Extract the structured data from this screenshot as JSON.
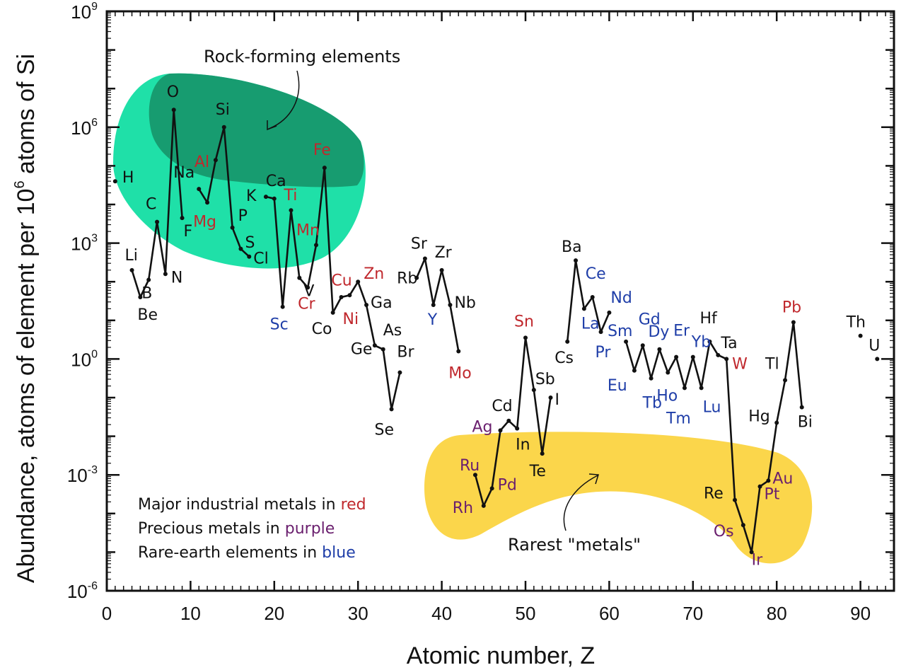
{
  "chart_data": {
    "type": "line",
    "xlabel": "Atomic number, Z",
    "ylabel_parts": [
      "Abundance, atoms of element per 10",
      "6",
      " atoms of Si"
    ],
    "xlim": [
      0,
      94
    ],
    "ylim_log10": [
      -6,
      9
    ],
    "x_ticks": [
      "0",
      "10",
      "20",
      "30",
      "40",
      "50",
      "60",
      "70",
      "80",
      "90"
    ],
    "y_ticks": [
      {
        "base": "10",
        "exp": "-6"
      },
      {
        "base": "10",
        "exp": "-3"
      },
      {
        "base": "10",
        "exp": "0"
      },
      {
        "base": "10",
        "exp": "3"
      },
      {
        "base": "10",
        "exp": "6"
      },
      {
        "base": "10",
        "exp": "9"
      }
    ],
    "y_scale": "log",
    "grid": false,
    "colors": {
      "line": "#111111",
      "black": "#111111",
      "red": "#c0282d",
      "purple": "#6a1f6e",
      "blue": "#1f3ea8",
      "rock_region": "#1fe0a8",
      "rock_region_dark": "#179c70",
      "rare_region": "#fbd64b"
    },
    "elements": [
      {
        "z": 1,
        "symbol": "H",
        "log10": 4.6,
        "c": "black"
      },
      {
        "z": 3,
        "symbol": "Li",
        "log10": 2.3,
        "c": "black"
      },
      {
        "z": 4,
        "symbol": "Be",
        "log10": 1.6,
        "c": "black"
      },
      {
        "z": 5,
        "symbol": "B",
        "log10": 2.05,
        "c": "black"
      },
      {
        "z": 6,
        "symbol": "C",
        "log10": 3.55,
        "c": "black"
      },
      {
        "z": 7,
        "symbol": "N",
        "log10": 2.2,
        "c": "black"
      },
      {
        "z": 8,
        "symbol": "O",
        "log10": 6.45,
        "c": "black"
      },
      {
        "z": 9,
        "symbol": "F",
        "log10": 3.65,
        "c": "black"
      },
      {
        "z": 11,
        "symbol": "Na",
        "log10": 4.4,
        "c": "black"
      },
      {
        "z": 12,
        "symbol": "Mg",
        "log10": 4.05,
        "c": "red"
      },
      {
        "z": 13,
        "symbol": "Al",
        "log10": 5.15,
        "c": "red"
      },
      {
        "z": 14,
        "symbol": "Si",
        "log10": 6.0,
        "c": "black"
      },
      {
        "z": 15,
        "symbol": "P",
        "log10": 3.4,
        "c": "black"
      },
      {
        "z": 16,
        "symbol": "S",
        "log10": 2.85,
        "c": "black"
      },
      {
        "z": 17,
        "symbol": "Cl",
        "log10": 2.65,
        "c": "black"
      },
      {
        "z": 19,
        "symbol": "K",
        "log10": 4.2,
        "c": "black"
      },
      {
        "z": 20,
        "symbol": "Ca",
        "log10": 4.15,
        "c": "black"
      },
      {
        "z": 21,
        "symbol": "Sc",
        "log10": 1.35,
        "c": "blue"
      },
      {
        "z": 22,
        "symbol": "Ti",
        "log10": 3.85,
        "c": "red"
      },
      {
        "z": 23,
        "symbol": "V",
        "log10": 2.1,
        "c": "black"
      },
      {
        "z": 24,
        "symbol": "Cr",
        "log10": 1.85,
        "c": "red"
      },
      {
        "z": 25,
        "symbol": "Mn",
        "log10": 2.95,
        "c": "red"
      },
      {
        "z": 26,
        "symbol": "Fe",
        "log10": 4.95,
        "c": "red"
      },
      {
        "z": 27,
        "symbol": "Co",
        "log10": 1.2,
        "c": "black"
      },
      {
        "z": 28,
        "symbol": "Ni",
        "log10": 1.6,
        "c": "red"
      },
      {
        "z": 29,
        "symbol": "Cu",
        "log10": 1.65,
        "c": "red"
      },
      {
        "z": 30,
        "symbol": "Zn",
        "log10": 2.0,
        "c": "red"
      },
      {
        "z": 31,
        "symbol": "Ga",
        "log10": 1.4,
        "c": "black"
      },
      {
        "z": 32,
        "symbol": "Ge",
        "log10": 0.35,
        "c": "black"
      },
      {
        "z": 33,
        "symbol": "As",
        "log10": 0.25,
        "c": "black"
      },
      {
        "z": 34,
        "symbol": "Se",
        "log10": -1.3,
        "c": "black"
      },
      {
        "z": 35,
        "symbol": "Br",
        "log10": -0.35,
        "c": "black"
      },
      {
        "z": 37,
        "symbol": "Rb",
        "log10": 2.1,
        "c": "black"
      },
      {
        "z": 38,
        "symbol": "Sr",
        "log10": 2.6,
        "c": "black"
      },
      {
        "z": 39,
        "symbol": "Y",
        "log10": 1.4,
        "c": "blue"
      },
      {
        "z": 40,
        "symbol": "Zr",
        "log10": 2.3,
        "c": "black"
      },
      {
        "z": 41,
        "symbol": "Nb",
        "log10": 1.4,
        "c": "black"
      },
      {
        "z": 42,
        "symbol": "Mo",
        "log10": 0.2,
        "c": "red"
      },
      {
        "z": 44,
        "symbol": "Ru",
        "log10": -3.0,
        "c": "purple"
      },
      {
        "z": 45,
        "symbol": "Rh",
        "log10": -3.8,
        "c": "purple"
      },
      {
        "z": 46,
        "symbol": "Pd",
        "log10": -3.35,
        "c": "purple"
      },
      {
        "z": 47,
        "symbol": "Ag",
        "log10": -1.85,
        "c": "purple"
      },
      {
        "z": 48,
        "symbol": "Cd",
        "log10": -1.6,
        "c": "black"
      },
      {
        "z": 49,
        "symbol": "In",
        "log10": -1.8,
        "c": "black"
      },
      {
        "z": 50,
        "symbol": "Sn",
        "log10": 0.55,
        "c": "red"
      },
      {
        "z": 51,
        "symbol": "Sb",
        "log10": -0.8,
        "c": "black"
      },
      {
        "z": 52,
        "symbol": "Te",
        "log10": -2.45,
        "c": "black"
      },
      {
        "z": 53,
        "symbol": "I",
        "log10": -1.0,
        "c": "black"
      },
      {
        "z": 55,
        "symbol": "Cs",
        "log10": 0.45,
        "c": "black"
      },
      {
        "z": 56,
        "symbol": "Ba",
        "log10": 2.55,
        "c": "black"
      },
      {
        "z": 57,
        "symbol": "La",
        "log10": 1.3,
        "c": "blue"
      },
      {
        "z": 58,
        "symbol": "Ce",
        "log10": 1.6,
        "c": "blue"
      },
      {
        "z": 59,
        "symbol": "Pr",
        "log10": 0.7,
        "c": "blue"
      },
      {
        "z": 60,
        "symbol": "Nd",
        "log10": 1.2,
        "c": "blue"
      },
      {
        "z": 62,
        "symbol": "Sm",
        "log10": 0.45,
        "c": "blue"
      },
      {
        "z": 63,
        "symbol": "Eu",
        "log10": -0.3,
        "c": "blue"
      },
      {
        "z": 64,
        "symbol": "Gd",
        "log10": 0.35,
        "c": "blue"
      },
      {
        "z": 65,
        "symbol": "Tb",
        "log10": -0.5,
        "c": "blue"
      },
      {
        "z": 66,
        "symbol": "Dy",
        "log10": 0.25,
        "c": "blue"
      },
      {
        "z": 67,
        "symbol": "Ho",
        "log10": -0.35,
        "c": "blue"
      },
      {
        "z": 68,
        "symbol": "Er",
        "log10": 0.05,
        "c": "blue"
      },
      {
        "z": 69,
        "symbol": "Tm",
        "log10": -0.75,
        "c": "blue"
      },
      {
        "z": 70,
        "symbol": "Yb",
        "log10": 0.05,
        "c": "blue"
      },
      {
        "z": 71,
        "symbol": "Lu",
        "log10": -0.75,
        "c": "blue"
      },
      {
        "z": 72,
        "symbol": "Hf",
        "log10": 0.45,
        "c": "black"
      },
      {
        "z": 73,
        "symbol": "Ta",
        "log10": 0.1,
        "c": "black"
      },
      {
        "z": 74,
        "symbol": "W",
        "log10": 0.0,
        "c": "red"
      },
      {
        "z": 75,
        "symbol": "Re",
        "log10": -3.65,
        "c": "black"
      },
      {
        "z": 76,
        "symbol": "Os",
        "log10": -4.3,
        "c": "purple"
      },
      {
        "z": 77,
        "symbol": "Ir",
        "log10": -5.0,
        "c": "purple"
      },
      {
        "z": 78,
        "symbol": "Pt",
        "log10": -3.3,
        "c": "purple"
      },
      {
        "z": 79,
        "symbol": "Au",
        "log10": -3.15,
        "c": "purple"
      },
      {
        "z": 80,
        "symbol": "Hg",
        "log10": -1.65,
        "c": "black"
      },
      {
        "z": 81,
        "symbol": "Tl",
        "log10": -0.55,
        "c": "black"
      },
      {
        "z": 82,
        "symbol": "Pb",
        "log10": 0.95,
        "c": "red"
      },
      {
        "z": 83,
        "symbol": "Bi",
        "log10": -1.25,
        "c": "black"
      },
      {
        "z": 90,
        "symbol": "Th",
        "log10": 0.6,
        "c": "black"
      },
      {
        "z": 92,
        "symbol": "U",
        "log10": 0.0,
        "c": "black"
      }
    ],
    "line_segments": [
      [
        3,
        4,
        5,
        6,
        7,
        8,
        9
      ],
      [
        11,
        12,
        13,
        14,
        15,
        16,
        17
      ],
      [
        19,
        20,
        21,
        22,
        23,
        24,
        25,
        26,
        27,
        28,
        29,
        30,
        31,
        32,
        33,
        34,
        35
      ],
      [
        37,
        38,
        39,
        40,
        41,
        42
      ],
      [
        44,
        45,
        46,
        47,
        48,
        49,
        50,
        51,
        52,
        53
      ],
      [
        55,
        56,
        57,
        58,
        59,
        60
      ],
      [
        62,
        63,
        64,
        65,
        66,
        67,
        68,
        69,
        70,
        71,
        72,
        73,
        74,
        75,
        76,
        77,
        78,
        79,
        80,
        81,
        82,
        83
      ]
    ],
    "annotations": {
      "rock_forming": "Rock-forming elements",
      "rarest_metals": "Rarest \"metals\"",
      "legend_lines": [
        {
          "prefix": "Major industrial metals in ",
          "word": "red",
          "c": "red"
        },
        {
          "prefix": "Precious metals in ",
          "word": "purple",
          "c": "purple"
        },
        {
          "prefix": "Rare-earth elements in ",
          "word": "blue",
          "c": "blue"
        }
      ]
    }
  }
}
